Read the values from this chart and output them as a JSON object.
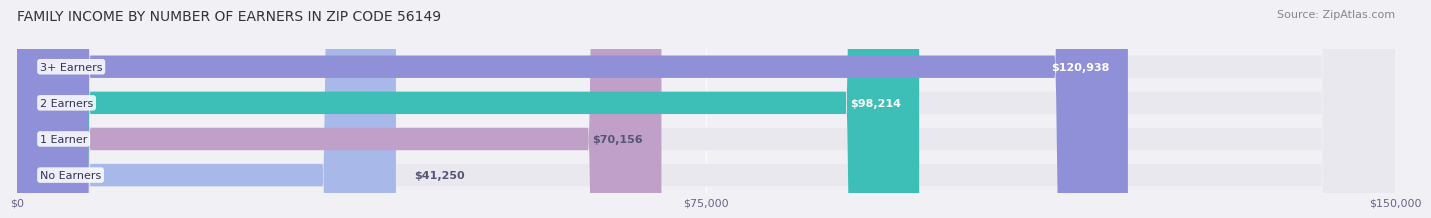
{
  "title": "FAMILY INCOME BY NUMBER OF EARNERS IN ZIP CODE 56149",
  "source": "Source: ZipAtlas.com",
  "categories": [
    "No Earners",
    "1 Earner",
    "2 Earners",
    "3+ Earners"
  ],
  "values": [
    41250,
    70156,
    98214,
    120938
  ],
  "bar_colors": [
    "#a8b8e8",
    "#c0a0c8",
    "#3dbfb8",
    "#9090d8"
  ],
  "bar_edge_colors": [
    "#a8b8e8",
    "#c0a0c8",
    "#3dbfb8",
    "#9090d8"
  ],
  "label_colors": [
    "#555577",
    "#555577",
    "#ffffff",
    "#ffffff"
  ],
  "value_labels": [
    "$41,250",
    "$70,156",
    "$98,214",
    "$120,938"
  ],
  "xlim": [
    0,
    150000
  ],
  "xticks": [
    0,
    75000,
    150000
  ],
  "xticklabels": [
    "$0",
    "$75,000",
    "$150,000"
  ],
  "background_color": "#f0f0f5",
  "bar_background_color": "#e8e8ee",
  "title_fontsize": 10,
  "source_fontsize": 8,
  "label_fontsize": 8,
  "value_fontsize": 8
}
